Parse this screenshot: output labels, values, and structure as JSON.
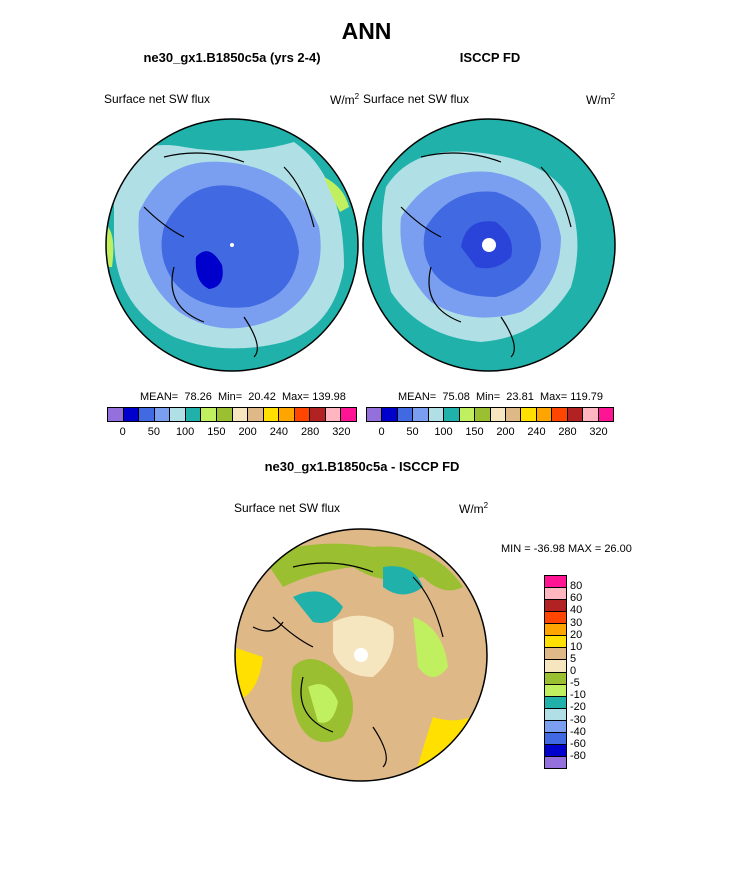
{
  "title": "ANN",
  "panels": [
    {
      "subtitle": "ne30_gx1.B1850c5a (yrs 2-4)",
      "variable": "Surface net SW flux",
      "units": "W/m",
      "units_sup": "2",
      "stats": {
        "mean_label": "MEAN=",
        "mean": "78.26",
        "min_label": "Min=",
        "min": "20.42",
        "max_label": "Max=",
        "max": "139.98"
      }
    },
    {
      "subtitle": "ISCCP FD",
      "variable": "Surface net SW flux",
      "units": "W/m",
      "units_sup": "2",
      "stats": {
        "mean_label": "MEAN=",
        "mean": "75.08",
        "min_label": "Min=",
        "min": "23.81",
        "max_label": "Max=",
        "max": "119.79"
      }
    }
  ],
  "colorbar": {
    "colors": [
      "#9370db",
      "#0000cd",
      "#4169e1",
      "#7b9ff0",
      "#b0e0e6",
      "#20b2aa",
      "#c0f060",
      "#9abf30",
      "#f5e6c0",
      "#deb887",
      "#ffe000",
      "#ffa500",
      "#ff4500",
      "#b22222",
      "#ffb6c1",
      "#ff1493"
    ],
    "labels": [
      "0",
      "50",
      "100",
      "150",
      "200",
      "240",
      "280",
      "320"
    ]
  },
  "diff": {
    "subtitle": "ne30_gx1.B1850c5a - ISCCP FD",
    "variable": "Surface net SW flux",
    "units": "W/m",
    "units_sup": "2",
    "minmax": "MIN = -36.98 MAX =  26.00",
    "colorbar": {
      "colors": [
        "#ff1493",
        "#ffb6c1",
        "#b22222",
        "#ff4500",
        "#ffa500",
        "#ffe000",
        "#deb887",
        "#f5e6c0",
        "#9abf30",
        "#c0f060",
        "#20b2aa",
        "#b0e0e6",
        "#7b9ff0",
        "#4169e1",
        "#0000cd",
        "#9370db"
      ],
      "labels": [
        "80",
        "60",
        "40",
        "30",
        "20",
        "10",
        "5",
        "0",
        "-5",
        "-10",
        "-20",
        "-30",
        "-40",
        "-60",
        "-80"
      ]
    }
  }
}
